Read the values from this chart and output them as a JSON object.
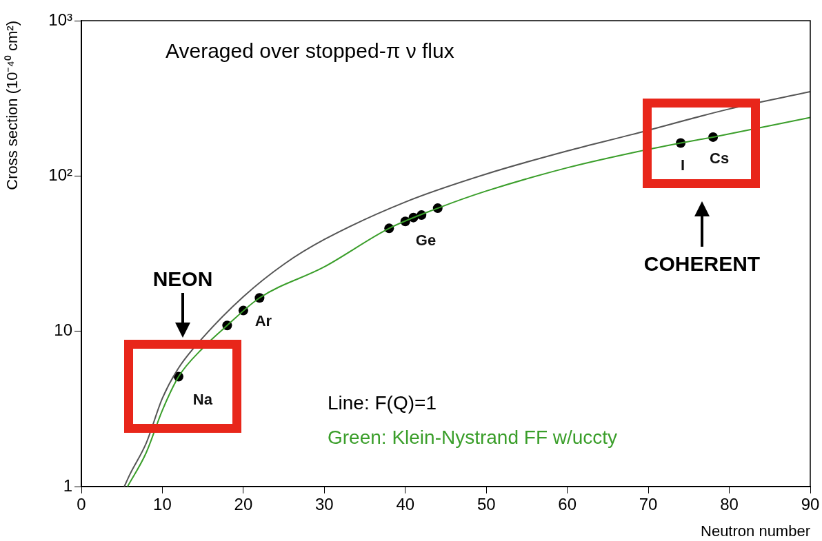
{
  "chart_data": {
    "type": "line",
    "xlabel": "Neutron number",
    "ylabel": "Cross section (10⁻⁴⁰ cm²)",
    "log": "y",
    "grid": false,
    "legend": false,
    "marker": "none",
    "line_style": "solid",
    "xlim": [
      0,
      90
    ],
    "xticks": [
      0,
      10,
      20,
      30,
      40,
      50,
      60,
      70,
      80,
      90
    ],
    "ylim": [
      1,
      1000
    ],
    "yticks": [
      1,
      10,
      {
        "value": 100,
        "label": "10²"
      },
      {
        "value": 1000,
        "label": "10³"
      }
    ],
    "series": [
      {
        "color": "#555555",
        "x": [
          5.3,
          6,
          8,
          10,
          12,
          15,
          20,
          25,
          30,
          40,
          50,
          60,
          68,
          80,
          90
        ],
        "values": [
          1,
          1.2,
          1.9,
          3.7,
          5.8,
          9.1,
          16.7,
          27,
          39,
          68,
          103,
          145,
          185,
          270,
          349
        ]
      },
      {
        "color": "#3a9e2a",
        "x": [
          5.7,
          8,
          10,
          12,
          15,
          18,
          22,
          30,
          38,
          44,
          50,
          60,
          68,
          74,
          78,
          90
        ],
        "values": [
          1,
          1.65,
          3.1,
          5.1,
          7.8,
          10.9,
          16.4,
          26,
          46,
          62,
          80,
          113,
          141,
          163,
          178,
          238
        ]
      },
      {
        "type": "scatter",
        "color": "#000000",
        "marker": "circle",
        "x": [
          12,
          18,
          20,
          22,
          38,
          40,
          41,
          42,
          44,
          74,
          78
        ],
        "values": [
          5.1,
          10.9,
          13.6,
          16.4,
          46,
          51,
          54,
          56,
          62,
          163,
          178
        ]
      }
    ],
    "annotations": [
      "Averaged over stopped-π ν flux",
      "Line: F(Q)=1",
      "Green: Klein-Nystrand FF w/uccty",
      {
        "text": "Na",
        "x": 12,
        "y": 5.1
      },
      {
        "text": "Ar",
        "x": 20,
        "y": 13.6
      },
      {
        "text": "Ge",
        "x": 41,
        "y": 54
      },
      {
        "text": "I",
        "x": 74,
        "y": 163
      },
      {
        "text": "Cs",
        "x": 78,
        "y": 178
      },
      "NEON",
      "COHERENT"
    ]
  }
}
